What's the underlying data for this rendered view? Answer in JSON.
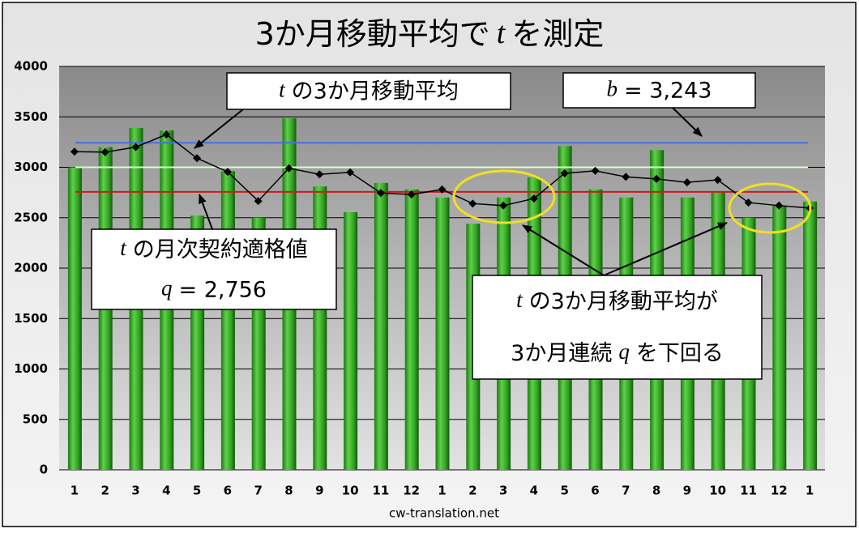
{
  "chart_data": {
    "type": "bar-line",
    "title": [
      "3か月移動平均で",
      "t",
      "を測定"
    ],
    "source": "cw-translation.net",
    "categories": [
      "1",
      "2",
      "3",
      "4",
      "5",
      "6",
      "7",
      "8",
      "9",
      "10",
      "11",
      "12",
      "1",
      "2",
      "3",
      "4",
      "5",
      "6",
      "7",
      "8",
      "9",
      "10",
      "11",
      "12",
      "1"
    ],
    "series": [
      {
        "type": "bar",
        "color": "#2e9e1e",
        "values": [
          3000,
          3200,
          3390,
          3365,
          2520,
          2960,
          2500,
          3485,
          2810,
          2555,
          2845,
          2780,
          2700,
          2440,
          2700,
          2900,
          3210,
          2780,
          2700,
          3170,
          2700,
          2750,
          2500,
          2620,
          2660
        ]
      },
      {
        "type": "line",
        "color": "#000000",
        "values": [
          3155,
          3150,
          3200,
          3325,
          3090,
          2955,
          2665,
          2990,
          2930,
          2950,
          2745,
          2730,
          2780,
          2640,
          2620,
          2690,
          2940,
          2965,
          2905,
          2885,
          2850,
          2875,
          2650,
          2620,
          2595
        ]
      }
    ],
    "ref_lines": [
      {
        "value": 3243,
        "color": "#4a6ee0"
      },
      {
        "value": 3000,
        "color": "#d8ffd0"
      },
      {
        "value": 2756,
        "color": "#d01818"
      }
    ],
    "annotations": [
      {
        "lines": [
          [
            "t",
            "の3か月移動平均"
          ]
        ]
      },
      {
        "lines": [
          [
            "b",
            "= 3,243"
          ]
        ]
      },
      {
        "lines": [
          [
            "t",
            "の月次契約適格値"
          ],
          [
            "q",
            "= 2,756"
          ]
        ]
      },
      {
        "lines": [
          [
            "t",
            "の3か月移動平均が"
          ],
          [
            "3か月連続",
            "q",
            "を下回る"
          ]
        ]
      }
    ],
    "ylim": [
      0,
      4000
    ],
    "yticks": [
      0,
      500,
      1000,
      1500,
      2000,
      2500,
      3000,
      3500,
      4000
    ],
    "grid": true
  }
}
